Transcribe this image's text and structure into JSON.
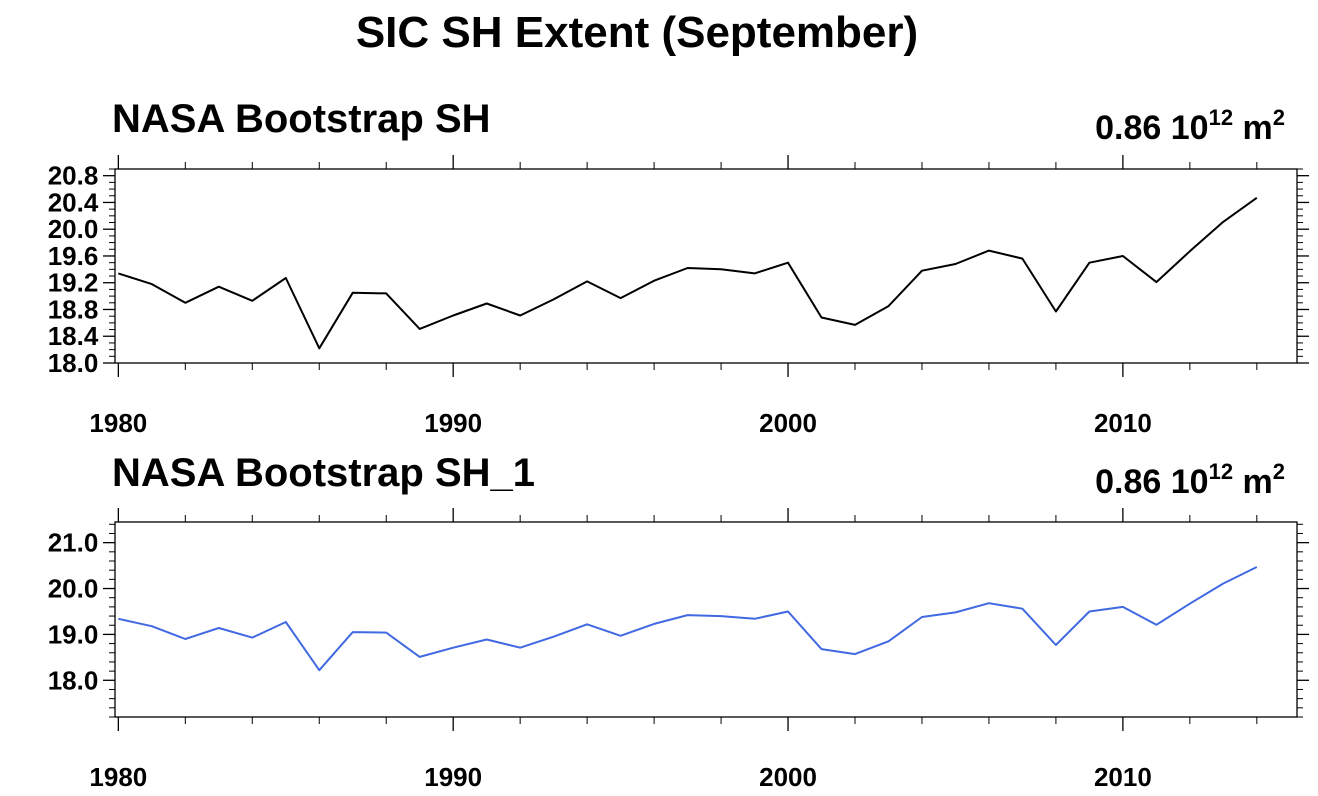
{
  "figure": {
    "title": "SIC SH Extent (September)"
  },
  "chart_data": [
    {
      "type": "line",
      "title": "NASA Bootstrap SH",
      "annotation": {
        "value": "0.86",
        "base": "10",
        "exponent": "12",
        "unit": "m",
        "unit_power": "2"
      },
      "xlabel": "",
      "ylabel": "",
      "xlim": [
        1979.9,
        2015.2
      ],
      "ylim": [
        18.0,
        20.9
      ],
      "x_ticks": [
        1980,
        1990,
        2000,
        2010
      ],
      "y_ticks": [
        18.0,
        18.4,
        18.8,
        19.2,
        19.6,
        20.0,
        20.4,
        20.8
      ],
      "y_tick_labels": [
        "18.0",
        "18.4",
        "18.8",
        "19.2",
        "19.6",
        "20.0",
        "20.4",
        "20.8"
      ],
      "grid": false,
      "series": [
        {
          "color": "#000000",
          "x": [
            1980,
            1981,
            1982,
            1983,
            1984,
            1985,
            1986,
            1987,
            1988,
            1989,
            1990,
            1991,
            1992,
            1993,
            1994,
            1995,
            1996,
            1997,
            1998,
            1999,
            2000,
            2001,
            2002,
            2003,
            2004,
            2005,
            2006,
            2007,
            2008,
            2009,
            2010,
            2011,
            2012,
            2013,
            2014
          ],
          "values": [
            19.34,
            19.18,
            18.9,
            19.14,
            18.93,
            19.27,
            18.22,
            19.05,
            19.04,
            18.51,
            18.71,
            18.89,
            18.71,
            18.95,
            19.22,
            18.97,
            19.23,
            19.42,
            19.4,
            19.34,
            19.5,
            18.68,
            18.57,
            18.85,
            19.38,
            19.48,
            19.68,
            19.56,
            18.77,
            19.5,
            19.6,
            19.21,
            19.67,
            20.11,
            20.47
          ]
        }
      ]
    },
    {
      "type": "line",
      "title": "NASA Bootstrap SH_1",
      "annotation": {
        "value": "0.86",
        "base": "10",
        "exponent": "12",
        "unit": "m",
        "unit_power": "2"
      },
      "xlabel": "",
      "ylabel": "",
      "xlim": [
        1979.9,
        2015.2
      ],
      "ylim": [
        17.2,
        21.45
      ],
      "x_ticks": [
        1980,
        1990,
        2000,
        2010
      ],
      "y_ticks": [
        18.0,
        19.0,
        20.0,
        21.0
      ],
      "y_tick_labels": [
        "18.0",
        "19.0",
        "20.0",
        "21.0"
      ],
      "grid": false,
      "series": [
        {
          "color": "#4169e1",
          "x": [
            1980,
            1981,
            1982,
            1983,
            1984,
            1985,
            1986,
            1987,
            1988,
            1989,
            1990,
            1991,
            1992,
            1993,
            1994,
            1995,
            1996,
            1997,
            1998,
            1999,
            2000,
            2001,
            2002,
            2003,
            2004,
            2005,
            2006,
            2007,
            2008,
            2009,
            2010,
            2011,
            2012,
            2013,
            2014
          ],
          "values": [
            19.34,
            19.18,
            18.9,
            19.14,
            18.93,
            19.27,
            18.22,
            19.05,
            19.04,
            18.51,
            18.71,
            18.89,
            18.71,
            18.95,
            19.22,
            18.97,
            19.23,
            19.42,
            19.4,
            19.34,
            19.5,
            18.68,
            18.57,
            18.85,
            19.38,
            19.48,
            19.68,
            19.56,
            18.77,
            19.5,
            19.6,
            19.21,
            19.67,
            20.11,
            20.47
          ]
        }
      ]
    }
  ]
}
